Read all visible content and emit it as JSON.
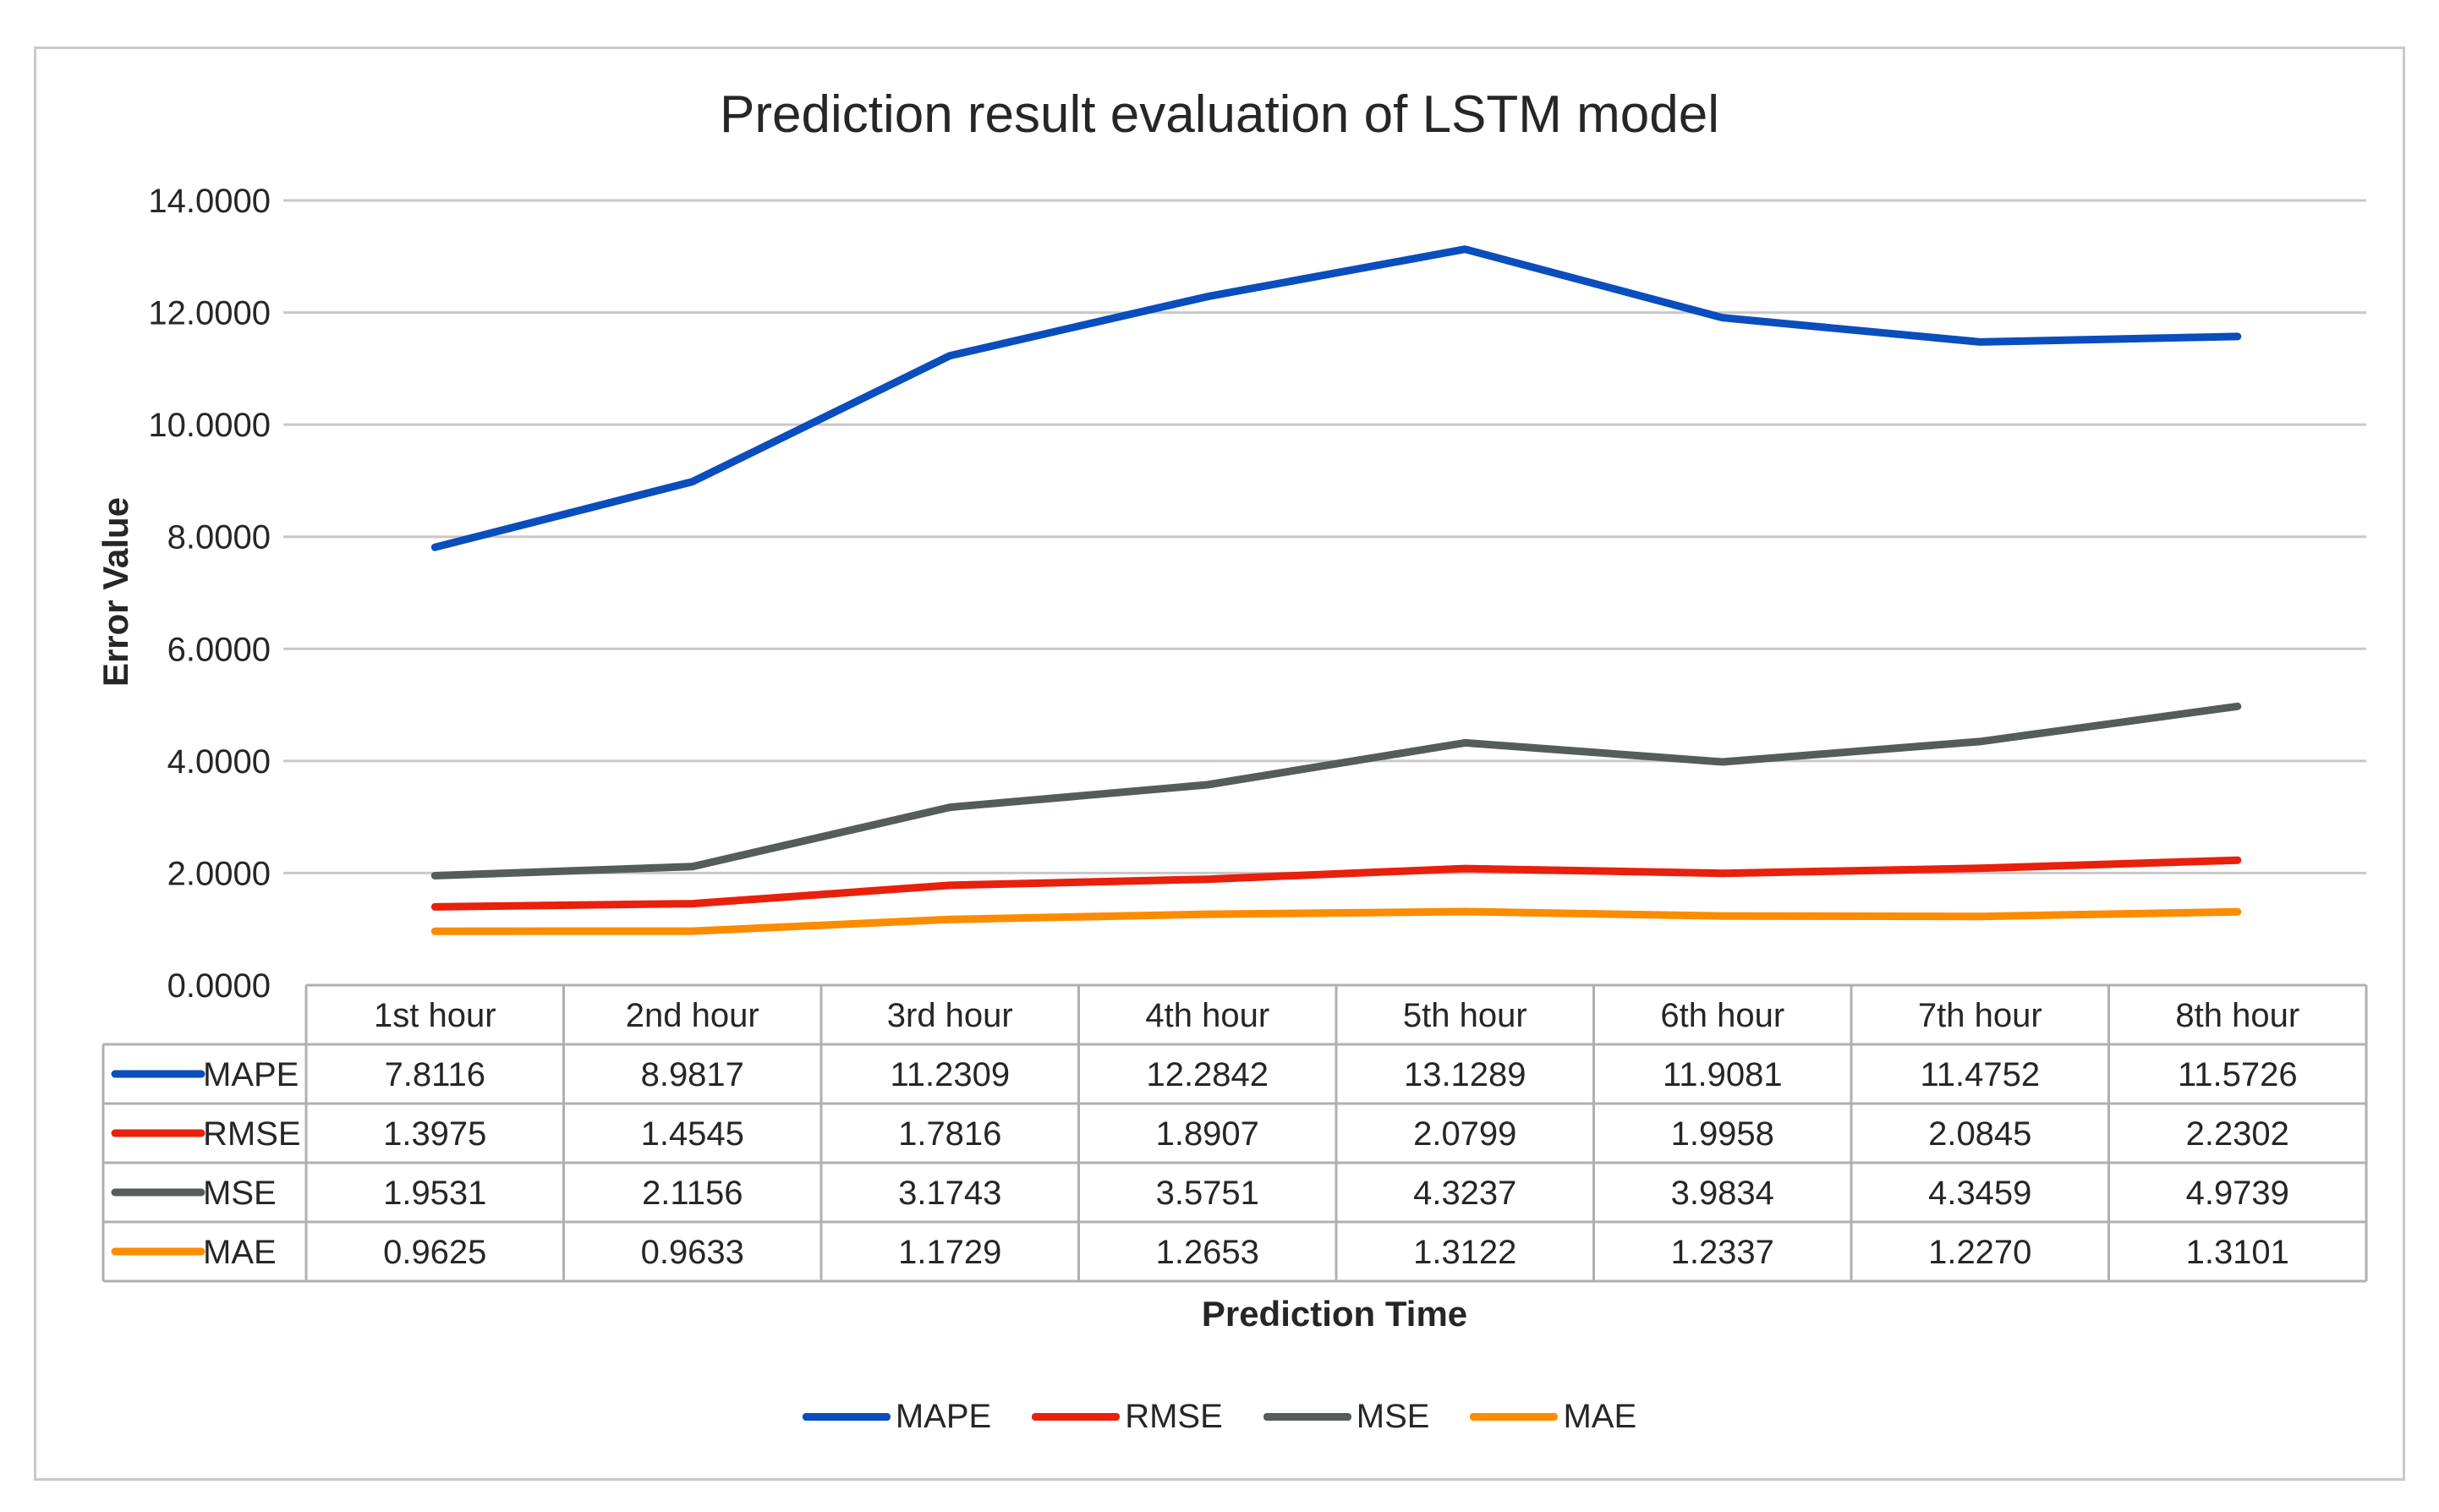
{
  "chart_data": {
    "type": "line",
    "title": "Prediction result evaluation of LSTM model",
    "xlabel": "Prediction Time",
    "ylabel": "Error Value",
    "ylim": [
      0,
      14
    ],
    "yticks": [
      "0.0000",
      "2.0000",
      "4.0000",
      "6.0000",
      "8.0000",
      "10.0000",
      "12.0000",
      "14.0000"
    ],
    "categories": [
      "1st hour",
      "2nd hour",
      "3rd hour",
      "4th hour",
      "5th hour",
      "6th hour",
      "7th hour",
      "8th hour"
    ],
    "grid": true,
    "legend_position": "bottom",
    "series": [
      {
        "name": "MAPE",
        "color": "#0a4dbd",
        "values": [
          7.8116,
          8.9817,
          11.2309,
          12.2842,
          13.1289,
          11.9081,
          11.4752,
          11.5726
        ],
        "labels": [
          "7.8116",
          "8.9817",
          "11.2309",
          "12.2842",
          "13.1289",
          "11.9081",
          "11.4752",
          "11.5726"
        ]
      },
      {
        "name": "RMSE",
        "color": "#e8200c",
        "values": [
          1.3975,
          1.4545,
          1.7816,
          1.8907,
          2.0799,
          1.9958,
          2.0845,
          2.2302
        ],
        "labels": [
          "1.3975",
          "1.4545",
          "1.7816",
          "1.8907",
          "2.0799",
          "1.9958",
          "2.0845",
          "2.2302"
        ]
      },
      {
        "name": "MSE",
        "color": "#565c58",
        "values": [
          1.9531,
          2.1156,
          3.1743,
          3.5751,
          4.3237,
          3.9834,
          4.3459,
          4.9739
        ],
        "labels": [
          "1.9531",
          "2.1156",
          "3.1743",
          "3.5751",
          "4.3237",
          "3.9834",
          "4.3459",
          "4.9739"
        ]
      },
      {
        "name": "MAE",
        "color": "#fb8c00",
        "values": [
          0.9625,
          0.9633,
          1.1729,
          1.2653,
          1.3122,
          1.2337,
          1.227,
          1.3101
        ],
        "labels": [
          "0.9625",
          "0.9633",
          "1.1729",
          "1.2653",
          "1.3122",
          "1.2337",
          "1.2270",
          "1.3101"
        ]
      }
    ]
  }
}
